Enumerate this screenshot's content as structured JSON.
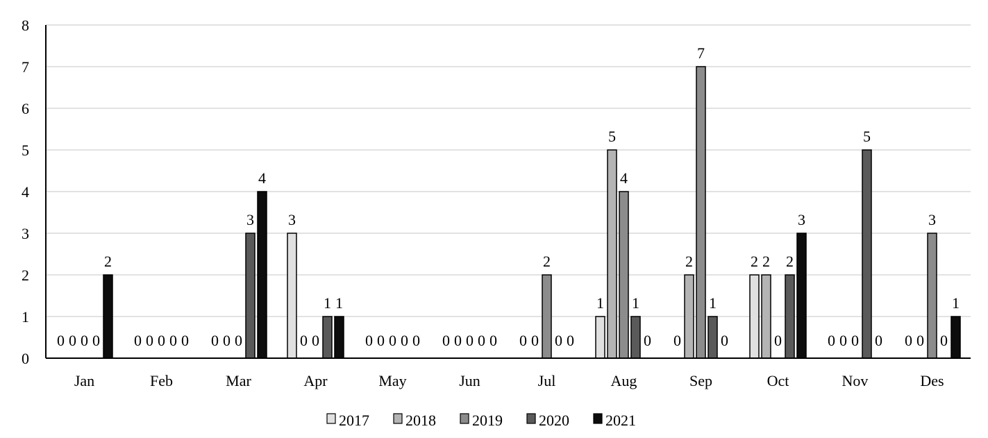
{
  "chart_data": {
    "type": "bar",
    "title": "",
    "xlabel": "",
    "ylabel": "",
    "ylim": [
      0,
      8
    ],
    "yticks": [
      0,
      1,
      2,
      3,
      4,
      5,
      6,
      7,
      8
    ],
    "grid": true,
    "legend_position": "bottom",
    "categories": [
      "Jan",
      "Feb",
      "Mar",
      "Apr",
      "May",
      "Jun",
      "Jul",
      "Aug",
      "Sep",
      "Oct",
      "Nov",
      "Des"
    ],
    "series": [
      {
        "name": "2017",
        "color": "#e0e0e0",
        "values": [
          0,
          0,
          0,
          3,
          0,
          0,
          0,
          1,
          0,
          2,
          0,
          0
        ]
      },
      {
        "name": "2018",
        "color": "#b4b4b4",
        "values": [
          0,
          0,
          0,
          0,
          0,
          0,
          0,
          5,
          2,
          2,
          0,
          0
        ]
      },
      {
        "name": "2019",
        "color": "#8c8c8c",
        "values": [
          0,
          0,
          0,
          0,
          0,
          0,
          2,
          4,
          7,
          0,
          0,
          3
        ]
      },
      {
        "name": "2020",
        "color": "#5a5a5a",
        "values": [
          0,
          0,
          3,
          1,
          0,
          0,
          0,
          1,
          1,
          2,
          5,
          0
        ]
      },
      {
        "name": "2021",
        "color": "#0d0d0d",
        "values": [
          2,
          0,
          4,
          1,
          0,
          0,
          0,
          0,
          0,
          3,
          0,
          1
        ]
      }
    ],
    "data_labels": [
      [
        "0",
        "0",
        "0",
        "0",
        "2"
      ],
      [
        "0",
        "0",
        "0",
        "0",
        "0"
      ],
      [
        "0",
        "0",
        "0",
        "3",
        "4"
      ],
      [
        "3",
        "0",
        "0",
        "1",
        "1"
      ],
      [
        "0",
        "0",
        "0",
        "0",
        "0"
      ],
      [
        "0",
        "0",
        "0",
        "0",
        "0"
      ],
      [
        "0",
        "0",
        "2",
        "0",
        "0"
      ],
      [
        "1",
        "5",
        "4",
        "1",
        "0"
      ],
      [
        "0",
        "2",
        "7",
        "1",
        "0"
      ],
      [
        "2",
        "2",
        "0",
        "2",
        "3"
      ],
      [
        "0",
        "0",
        "0",
        "5",
        "0"
      ],
      [
        "0",
        "0",
        "3",
        "0",
        "1"
      ]
    ]
  }
}
